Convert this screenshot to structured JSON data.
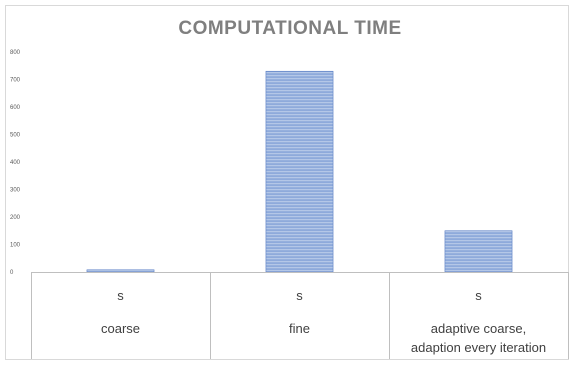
{
  "chart_data": {
    "type": "bar",
    "title": "COMPUTATIONAL TIME",
    "xlabel": "",
    "ylabel": "",
    "ylim": [
      0,
      800
    ],
    "yticks": [
      0,
      100,
      200,
      300,
      400,
      500,
      600,
      700,
      800
    ],
    "grid": false,
    "legend": "none",
    "categories": [
      {
        "unit": "s",
        "label_lines": [
          "coarse"
        ]
      },
      {
        "unit": "s",
        "label_lines": [
          "fine"
        ]
      },
      {
        "unit": "s",
        "label_lines": [
          "adaptive coarse,",
          "adaption every iteration"
        ]
      }
    ],
    "values": [
      8,
      730,
      150
    ],
    "colors": {
      "bar_fill": "#8eaadb",
      "bar_stripe": "#b4c7e7",
      "bar_edge": "#5b7fc4",
      "axis": "#bfbfbf",
      "text": "#595959",
      "title": "#7f7f7f"
    }
  }
}
